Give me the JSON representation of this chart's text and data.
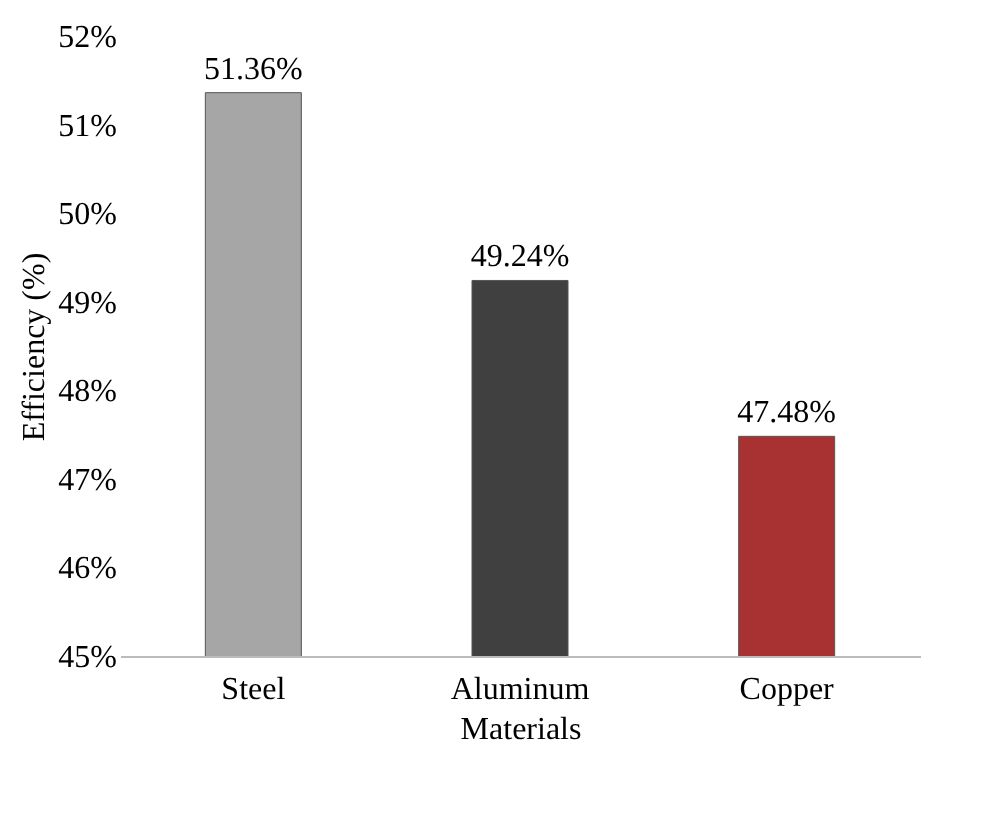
{
  "chart_data": {
    "type": "bar",
    "xlabel": "Materials",
    "ylabel": "Efficiency (%)",
    "categories": [
      "Steel",
      "Aluminum",
      "Copper"
    ],
    "values": [
      51.36,
      49.24,
      47.48
    ],
    "colors": [
      "#a6a6a6",
      "#404040",
      "#a83232"
    ],
    "value_labels": [
      "51.36%",
      "49.24%",
      "47.48%"
    ],
    "ylim": [
      45,
      52
    ],
    "yticks": [
      {
        "value": 45,
        "label": "45%"
      },
      {
        "value": 46,
        "label": "46%"
      },
      {
        "value": 47,
        "label": "47%"
      },
      {
        "value": 48,
        "label": "48%"
      },
      {
        "value": 49,
        "label": "49%"
      },
      {
        "value": 50,
        "label": "50%"
      },
      {
        "value": 51,
        "label": "51%"
      },
      {
        "value": 52,
        "label": "52%"
      }
    ],
    "grid": false
  }
}
